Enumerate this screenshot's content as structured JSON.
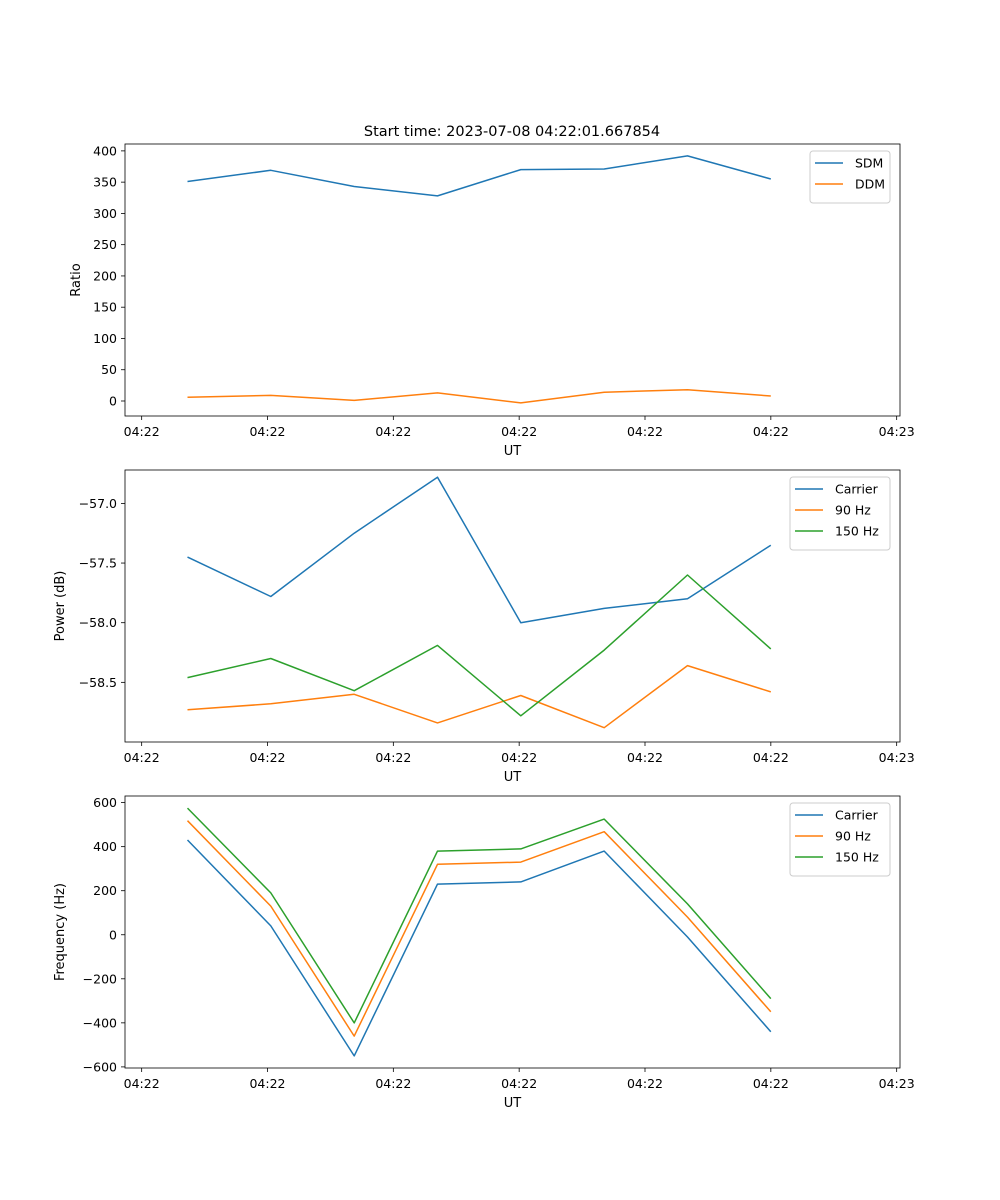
{
  "figure": {
    "title": "Start time: 2023-07-08 04:22:01.667854"
  },
  "chart_data": [
    {
      "type": "line",
      "title": "Start time: 2023-07-08 04:22:01.667854",
      "xlabel": "UT",
      "ylabel": "Ratio",
      "x_index": [
        0,
        1,
        2,
        3,
        4,
        5,
        6,
        7
      ],
      "xlim": [
        -0.75,
        8.55
      ],
      "xticks": [
        -0.55,
        0.96,
        2.47,
        3.98,
        5.49,
        7.0,
        8.51
      ],
      "xtick_labels": [
        "04:22",
        "04:22",
        "04:22",
        "04:22",
        "04:22",
        "04:22",
        "04:23"
      ],
      "ylim": [
        -24,
        411
      ],
      "yticks": [
        0,
        50,
        100,
        150,
        200,
        250,
        300,
        350,
        400
      ],
      "ytick_labels": [
        "0",
        "50",
        "100",
        "150",
        "200",
        "250",
        "300",
        "350",
        "400"
      ],
      "legend": "top-right",
      "series": [
        {
          "name": "SDM",
          "color": "#1f77b4",
          "values": [
            351,
            369,
            343,
            328,
            370,
            371,
            392,
            355
          ]
        },
        {
          "name": "DDM",
          "color": "#ff7f0e",
          "values": [
            6,
            9,
            1,
            13,
            -3,
            14,
            18,
            8
          ]
        }
      ]
    },
    {
      "type": "line",
      "title": "",
      "xlabel": "UT",
      "ylabel": "Power (dB)",
      "x_index": [
        0,
        1,
        2,
        3,
        4,
        5,
        6,
        7
      ],
      "xlim": [
        -0.75,
        8.55
      ],
      "xticks": [
        -0.55,
        0.96,
        2.47,
        3.98,
        5.49,
        7.0,
        8.51
      ],
      "xtick_labels": [
        "04:22",
        "04:22",
        "04:22",
        "04:22",
        "04:22",
        "04:22",
        "04:23"
      ],
      "ylim": [
        -59.0,
        -56.72
      ],
      "yticks": [
        -58.5,
        -58.0,
        -57.5,
        -57.0
      ],
      "ytick_labels": [
        "−58.5",
        "−58.0",
        "−57.5",
        "−57.0"
      ],
      "legend": "top-right",
      "series": [
        {
          "name": "Carrier",
          "color": "#1f77b4",
          "values": [
            -57.45,
            -57.78,
            -57.25,
            -56.78,
            -58.0,
            -57.88,
            -57.8,
            -57.35
          ]
        },
        {
          "name": "90 Hz",
          "color": "#ff7f0e",
          "values": [
            -58.73,
            -58.68,
            -58.6,
            -58.84,
            -58.61,
            -58.88,
            -58.36,
            -58.58
          ]
        },
        {
          "name": "150 Hz",
          "color": "#2ca02c",
          "values": [
            -58.46,
            -58.3,
            -58.57,
            -58.19,
            -58.78,
            -58.23,
            -57.6,
            -58.22
          ]
        }
      ]
    },
    {
      "type": "line",
      "title": "",
      "xlabel": "UT",
      "ylabel": "Frequency (Hz)",
      "x_index": [
        0,
        1,
        2,
        3,
        4,
        5,
        6,
        7
      ],
      "xlim": [
        -0.75,
        8.55
      ],
      "xticks": [
        -0.55,
        0.96,
        2.47,
        3.98,
        5.49,
        7.0,
        8.51
      ],
      "xtick_labels": [
        "04:22",
        "04:22",
        "04:22",
        "04:22",
        "04:22",
        "04:22",
        "04:23"
      ],
      "ylim": [
        -605,
        630
      ],
      "yticks": [
        -600,
        -400,
        -200,
        0,
        200,
        400,
        600
      ],
      "ytick_labels": [
        "−600",
        "−400",
        "−200",
        "0",
        "200",
        "400",
        "600"
      ],
      "legend": "top-right",
      "series": [
        {
          "name": "Carrier",
          "color": "#1f77b4",
          "values": [
            430,
            40,
            -550,
            230,
            240,
            380,
            -10,
            -440
          ]
        },
        {
          "name": "90 Hz",
          "color": "#ff7f0e",
          "values": [
            518,
            130,
            -460,
            320,
            330,
            468,
            80,
            -350
          ]
        },
        {
          "name": "150 Hz",
          "color": "#2ca02c",
          "values": [
            575,
            190,
            -400,
            380,
            390,
            525,
            140,
            -290
          ]
        }
      ]
    }
  ]
}
